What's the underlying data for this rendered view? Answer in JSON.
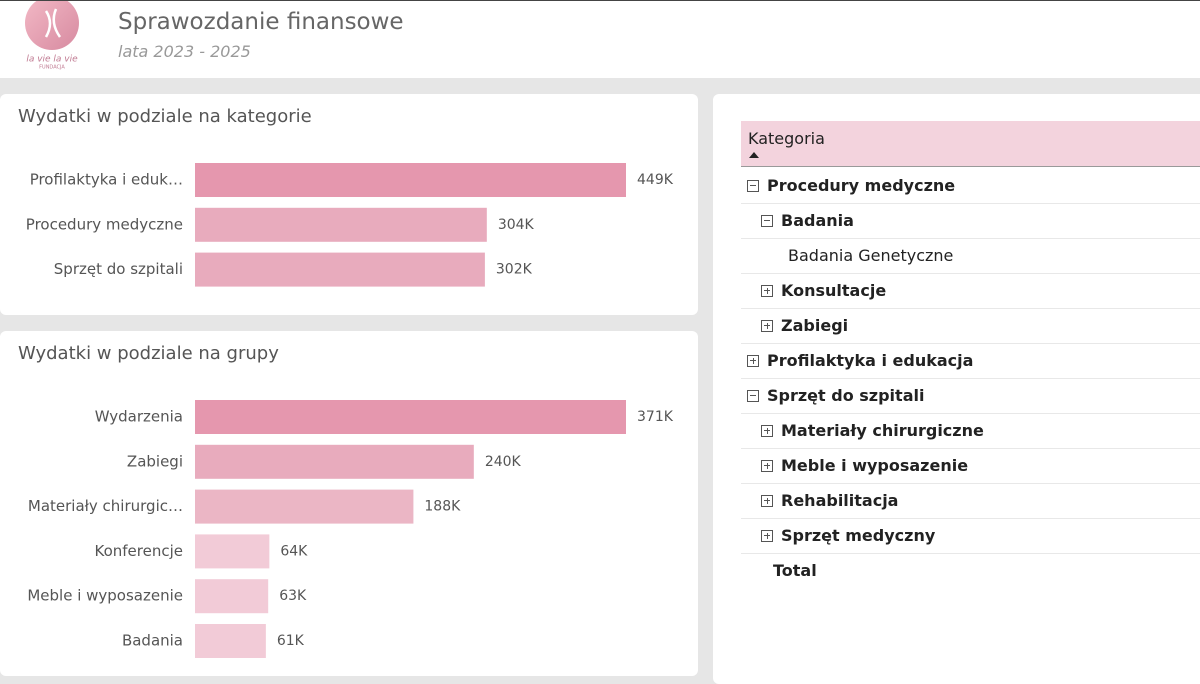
{
  "header": {
    "title": "Sprawozdanie finansowe",
    "subtitle": "lata 2023 - 2025",
    "logo_text": "la vie la vie",
    "logo_sub": "FUNDACJA"
  },
  "charts": [
    {
      "type": "bar",
      "orientation": "horizontal",
      "title": "Wydatki w podziale na kategorie",
      "categories": [
        "Profilaktyka i eduk…",
        "Procedury medyczne",
        "Sprzęt do szpitali"
      ],
      "values": [
        449000,
        304000,
        302000
      ],
      "value_labels": [
        "449K",
        "304K",
        "302K"
      ],
      "colors": [
        "#e597ae",
        "#e8abbd",
        "#e8abbd"
      ]
    },
    {
      "type": "bar",
      "orientation": "horizontal",
      "title": "Wydatki w podziale na grupy",
      "categories": [
        "Wydarzenia",
        "Zabiegi",
        "Materiały chirurgic…",
        "Konferencje",
        "Meble i wyposazenie",
        "Badania"
      ],
      "values": [
        371000,
        240000,
        188000,
        64000,
        63000,
        61000
      ],
      "value_labels": [
        "371K",
        "240K",
        "188K",
        "64K",
        "63K",
        "61K"
      ],
      "colors": [
        "#e597ae",
        "#e8abbd",
        "#ebb6c5",
        "#f2cbd7",
        "#f2cbd7",
        "#f2cbd7"
      ]
    }
  ],
  "matrix": {
    "header": "Kategoria",
    "total": "Total",
    "rows": [
      {
        "label": "Procedury medyczne",
        "expanded": true,
        "children": [
          {
            "label": "Badania",
            "expanded": true,
            "children": [
              {
                "label": "Badania Genetyczne"
              }
            ]
          },
          {
            "label": "Konsultacje",
            "expanded": false
          },
          {
            "label": "Zabiegi",
            "expanded": false
          }
        ]
      },
      {
        "label": "Profilaktyka i edukacja",
        "expanded": false
      },
      {
        "label": "Sprzęt do szpitali",
        "expanded": true,
        "children": [
          {
            "label": "Materiały chirurgiczne",
            "expanded": false
          },
          {
            "label": "Meble i wyposazenie",
            "expanded": false
          },
          {
            "label": "Rehabilitacja",
            "expanded": false
          },
          {
            "label": "Sprzęt medyczny",
            "expanded": false
          }
        ]
      }
    ]
  }
}
